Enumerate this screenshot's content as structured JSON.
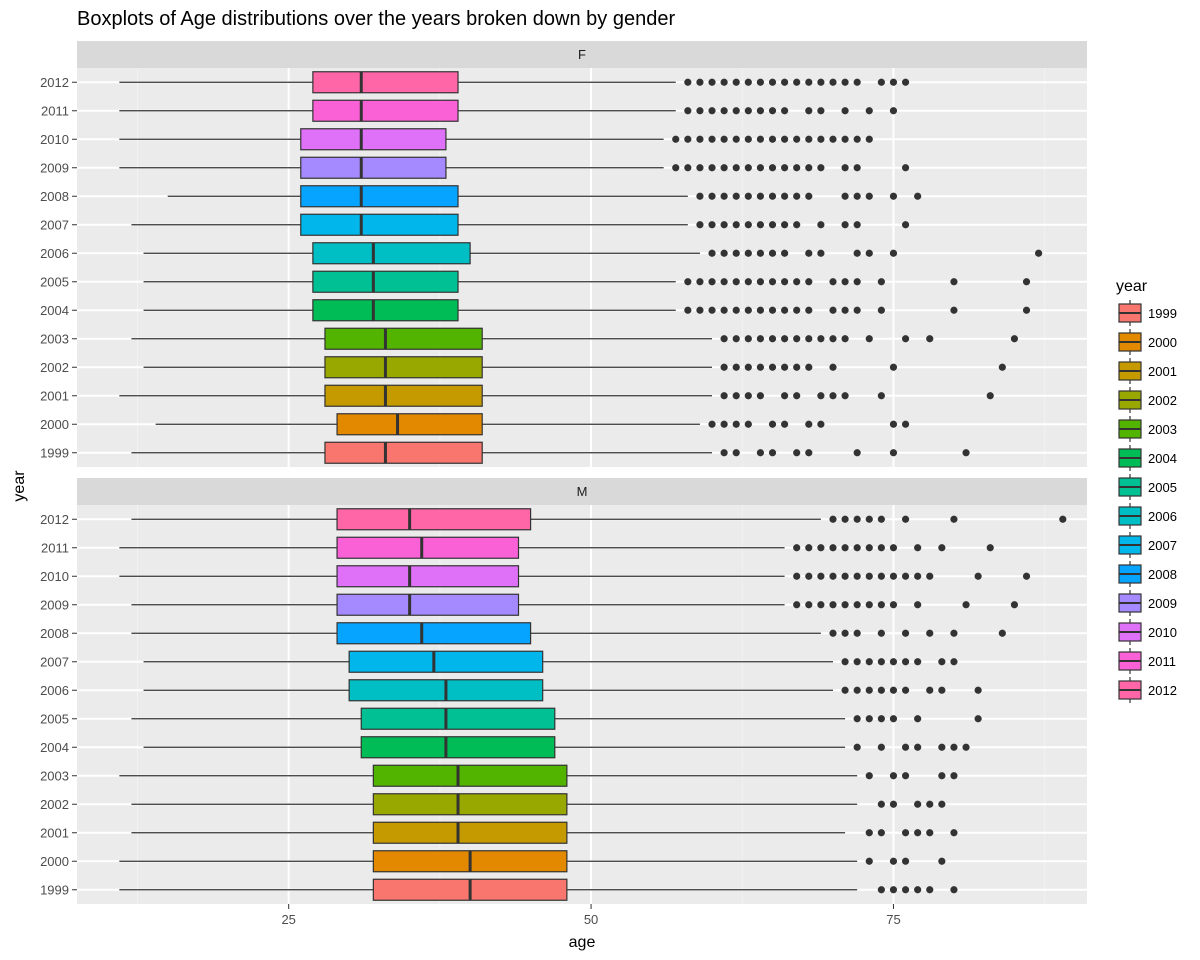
{
  "chart_data": {
    "type": "boxplot",
    "title": "Boxplots of Age distributions over the years broken down by gender",
    "xlabel": "age",
    "ylabel": "year",
    "xlim": [
      7.5,
      91
    ],
    "x_ticks": [
      25,
      50,
      75
    ],
    "grid": true,
    "facets": [
      "F",
      "M"
    ],
    "categories": [
      "1999",
      "2000",
      "2001",
      "2002",
      "2003",
      "2004",
      "2005",
      "2006",
      "2007",
      "2008",
      "2009",
      "2010",
      "2011",
      "2012"
    ],
    "legend": {
      "title": "year",
      "placement": "right"
    },
    "colors": {
      "1999": "#F8766D",
      "2000": "#E38900",
      "2001": "#C49A00",
      "2002": "#99A800",
      "2003": "#53B400",
      "2004": "#00BC56",
      "2005": "#00C094",
      "2006": "#00BFC4",
      "2007": "#00B6EB",
      "2008": "#06A4FF",
      "2009": "#A58AFF",
      "2010": "#DF70F8",
      "2011": "#FB61D7",
      "2012": "#FF66A8"
    },
    "series": [
      {
        "facet": "F",
        "year": "1999",
        "whisker_low": 12,
        "q1": 28,
        "median": 33,
        "q3": 41,
        "whisker_high": 60,
        "outliers": [
          61,
          62,
          64,
          65,
          67,
          68,
          72,
          75,
          81
        ]
      },
      {
        "facet": "F",
        "year": "2000",
        "whisker_low": 14,
        "q1": 29,
        "median": 34,
        "q3": 41,
        "whisker_high": 59,
        "outliers": [
          60,
          61,
          62,
          63,
          65,
          66,
          68,
          69,
          75,
          76
        ]
      },
      {
        "facet": "F",
        "year": "2001",
        "whisker_low": 11,
        "q1": 28,
        "median": 33,
        "q3": 41,
        "whisker_high": 60,
        "outliers": [
          61,
          62,
          63,
          64,
          66,
          67,
          69,
          70,
          71,
          74,
          83
        ]
      },
      {
        "facet": "F",
        "year": "2002",
        "whisker_low": 13,
        "q1": 28,
        "median": 33,
        "q3": 41,
        "whisker_high": 60,
        "outliers": [
          61,
          62,
          63,
          64,
          65,
          66,
          67,
          68,
          70,
          75,
          84
        ]
      },
      {
        "facet": "F",
        "year": "2003",
        "whisker_low": 12,
        "q1": 28,
        "median": 33,
        "q3": 41,
        "whisker_high": 60,
        "outliers": [
          61,
          62,
          63,
          64,
          65,
          66,
          67,
          68,
          69,
          70,
          71,
          73,
          76,
          78,
          85
        ]
      },
      {
        "facet": "F",
        "year": "2004",
        "whisker_low": 13,
        "q1": 27,
        "median": 32,
        "q3": 39,
        "whisker_high": 57,
        "outliers": [
          58,
          59,
          60,
          61,
          62,
          63,
          64,
          65,
          66,
          67,
          68,
          70,
          71,
          72,
          74,
          80,
          86
        ]
      },
      {
        "facet": "F",
        "year": "2005",
        "whisker_low": 13,
        "q1": 27,
        "median": 32,
        "q3": 39,
        "whisker_high": 57,
        "outliers": [
          58,
          59,
          60,
          61,
          62,
          63,
          64,
          65,
          66,
          67,
          68,
          70,
          71,
          72,
          74,
          80,
          86
        ]
      },
      {
        "facet": "F",
        "year": "2006",
        "whisker_low": 13,
        "q1": 27,
        "median": 32,
        "q3": 40,
        "whisker_high": 59,
        "outliers": [
          60,
          61,
          62,
          63,
          64,
          65,
          66,
          68,
          69,
          72,
          73,
          75,
          87
        ]
      },
      {
        "facet": "F",
        "year": "2007",
        "whisker_low": 12,
        "q1": 26,
        "median": 31,
        "q3": 39,
        "whisker_high": 58,
        "outliers": [
          59,
          60,
          61,
          62,
          63,
          64,
          65,
          66,
          67,
          69,
          71,
          72,
          76
        ]
      },
      {
        "facet": "F",
        "year": "2008",
        "whisker_low": 15,
        "q1": 26,
        "median": 31,
        "q3": 39,
        "whisker_high": 58,
        "outliers": [
          59,
          60,
          61,
          62,
          63,
          64,
          65,
          66,
          67,
          68,
          71,
          72,
          73,
          75,
          77
        ]
      },
      {
        "facet": "F",
        "year": "2009",
        "whisker_low": 11,
        "q1": 26,
        "median": 31,
        "q3": 38,
        "whisker_high": 56,
        "outliers": [
          57,
          58,
          59,
          60,
          61,
          62,
          63,
          64,
          65,
          66,
          67,
          68,
          69,
          71,
          72,
          76
        ]
      },
      {
        "facet": "F",
        "year": "2010",
        "whisker_low": 11,
        "q1": 26,
        "median": 31,
        "q3": 38,
        "whisker_high": 56,
        "outliers": [
          57,
          58,
          59,
          60,
          61,
          62,
          63,
          64,
          65,
          66,
          67,
          68,
          69,
          70,
          71,
          72,
          73
        ]
      },
      {
        "facet": "F",
        "year": "2011",
        "whisker_low": 11,
        "q1": 27,
        "median": 31,
        "q3": 39,
        "whisker_high": 57,
        "outliers": [
          58,
          59,
          60,
          61,
          62,
          63,
          64,
          65,
          66,
          68,
          69,
          71,
          73,
          75
        ]
      },
      {
        "facet": "F",
        "year": "2012",
        "whisker_low": 11,
        "q1": 27,
        "median": 31,
        "q3": 39,
        "whisker_high": 57,
        "outliers": [
          58,
          59,
          60,
          61,
          62,
          63,
          64,
          65,
          66,
          67,
          68,
          69,
          70,
          71,
          72,
          74,
          75,
          76
        ]
      },
      {
        "facet": "M",
        "year": "1999",
        "whisker_low": 11,
        "q1": 32,
        "median": 40,
        "q3": 48,
        "whisker_high": 72,
        "outliers": [
          74,
          75,
          76,
          77,
          78,
          80
        ]
      },
      {
        "facet": "M",
        "year": "2000",
        "whisker_low": 11,
        "q1": 32,
        "median": 40,
        "q3": 48,
        "whisker_high": 72,
        "outliers": [
          73,
          75,
          76,
          79
        ]
      },
      {
        "facet": "M",
        "year": "2001",
        "whisker_low": 12,
        "q1": 32,
        "median": 39,
        "q3": 48,
        "whisker_high": 71,
        "outliers": [
          73,
          74,
          76,
          77,
          78,
          80
        ]
      },
      {
        "facet": "M",
        "year": "2002",
        "whisker_low": 12,
        "q1": 32,
        "median": 39,
        "q3": 48,
        "whisker_high": 72,
        "outliers": [
          74,
          75,
          77,
          78,
          79
        ]
      },
      {
        "facet": "M",
        "year": "2003",
        "whisker_low": 11,
        "q1": 32,
        "median": 39,
        "q3": 48,
        "whisker_high": 72,
        "outliers": [
          73,
          75,
          76,
          79,
          80
        ]
      },
      {
        "facet": "M",
        "year": "2004",
        "whisker_low": 13,
        "q1": 31,
        "median": 38,
        "q3": 47,
        "whisker_high": 71,
        "outliers": [
          72,
          74,
          76,
          77,
          79,
          80,
          81
        ]
      },
      {
        "facet": "M",
        "year": "2005",
        "whisker_low": 12,
        "q1": 31,
        "median": 38,
        "q3": 47,
        "whisker_high": 71,
        "outliers": [
          72,
          73,
          74,
          75,
          77,
          82
        ]
      },
      {
        "facet": "M",
        "year": "2006",
        "whisker_low": 13,
        "q1": 30,
        "median": 38,
        "q3": 46,
        "whisker_high": 70,
        "outliers": [
          71,
          72,
          73,
          74,
          75,
          76,
          78,
          79,
          82
        ]
      },
      {
        "facet": "M",
        "year": "2007",
        "whisker_low": 13,
        "q1": 30,
        "median": 37,
        "q3": 46,
        "whisker_high": 70,
        "outliers": [
          71,
          72,
          73,
          74,
          75,
          76,
          77,
          79,
          80
        ]
      },
      {
        "facet": "M",
        "year": "2008",
        "whisker_low": 12,
        "q1": 29,
        "median": 36,
        "q3": 45,
        "whisker_high": 69,
        "outliers": [
          70,
          71,
          72,
          74,
          76,
          78,
          80,
          84
        ]
      },
      {
        "facet": "M",
        "year": "2009",
        "whisker_low": 12,
        "q1": 29,
        "median": 35,
        "q3": 44,
        "whisker_high": 66,
        "outliers": [
          67,
          68,
          69,
          70,
          71,
          72,
          73,
          74,
          75,
          77,
          81,
          85
        ]
      },
      {
        "facet": "M",
        "year": "2010",
        "whisker_low": 11,
        "q1": 29,
        "median": 35,
        "q3": 44,
        "whisker_high": 66,
        "outliers": [
          67,
          68,
          69,
          70,
          71,
          72,
          73,
          74,
          75,
          76,
          77,
          78,
          82,
          86
        ]
      },
      {
        "facet": "M",
        "year": "2011",
        "whisker_low": 11,
        "q1": 29,
        "median": 36,
        "q3": 44,
        "whisker_high": 66,
        "outliers": [
          67,
          68,
          69,
          70,
          71,
          72,
          73,
          74,
          75,
          77,
          79,
          83
        ]
      },
      {
        "facet": "M",
        "year": "2012",
        "whisker_low": 12,
        "q1": 29,
        "median": 35,
        "q3": 45,
        "whisker_high": 69,
        "outliers": [
          70,
          71,
          72,
          73,
          74,
          76,
          80,
          89
        ]
      }
    ]
  }
}
